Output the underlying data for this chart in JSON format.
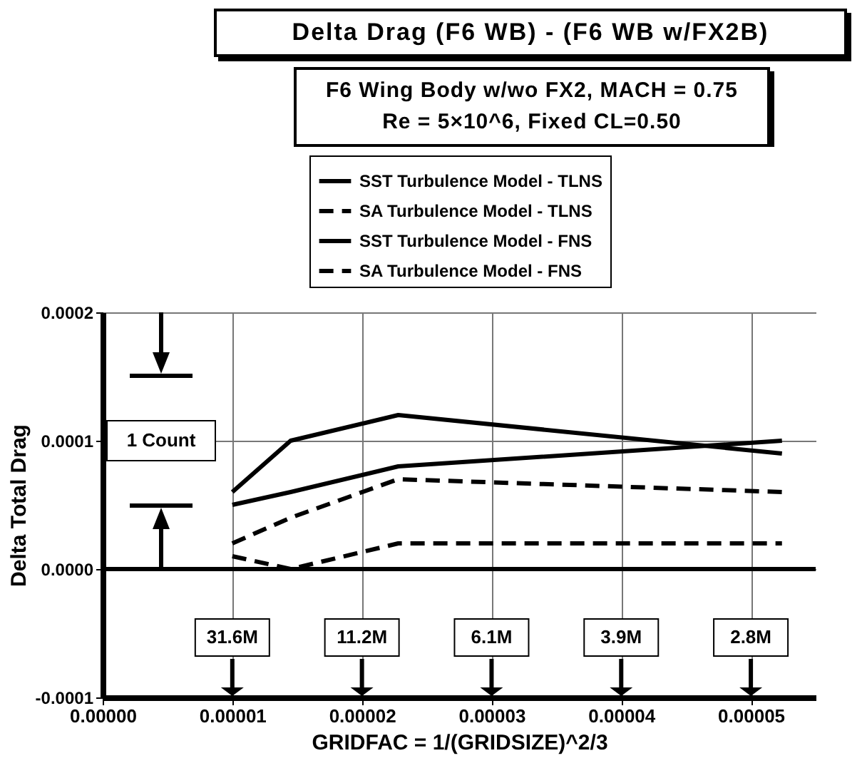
{
  "chart_data": {
    "type": "line",
    "title": "Delta Drag (F6 WB) - (F6 WB w/FX2B)",
    "subtitle": "F6 Wing Body w/wo FX2, MACH = 0.75\nRe = 5×10^6, Fixed CL=0.50",
    "xlabel": "GRIDFAC = 1/(GRIDSIZE)^2/3",
    "ylabel": "Delta Total Drag",
    "x": [
      1e-05,
      1.45e-05,
      2.28e-05,
      5.24e-05
    ],
    "series": [
      {
        "name": "SST Turbulence Model - TLNS",
        "color": "#000000",
        "line_style": "solid",
        "values": [
          6e-05,
          0.0001,
          0.00012,
          9e-05
        ]
      },
      {
        "name": "SA  Turbulence Model - TLNS",
        "color": "#000000",
        "line_style": "dashed",
        "values": [
          2e-05,
          4e-05,
          7e-05,
          6e-05
        ]
      },
      {
        "name": "SST Turbulence Model - FNS",
        "color": "#000000",
        "line_style": "solid",
        "values": [
          5e-05,
          6e-05,
          8e-05,
          0.0001
        ]
      },
      {
        "name": "SA  Turbulence Model - FNS",
        "color": "#000000",
        "line_style": "dashed",
        "values": [
          1e-05,
          0,
          2e-05,
          2e-05
        ]
      }
    ],
    "xlim": [
      0,
      5.5e-05
    ],
    "ylim": [
      -0.0001,
      0.0002
    ],
    "xticks": [
      {
        "value": 0,
        "label": "0.00000"
      },
      {
        "value": 1e-05,
        "label": "0.00001"
      },
      {
        "value": 2e-05,
        "label": "0.00002"
      },
      {
        "value": 3e-05,
        "label": "0.00003"
      },
      {
        "value": 4e-05,
        "label": "0.00004"
      },
      {
        "value": 5e-05,
        "label": "0.00005"
      }
    ],
    "yticks": [
      {
        "value": -0.0001,
        "label": "-0.0001"
      },
      {
        "value": 0,
        "label": "0.0000"
      },
      {
        "value": 0.0001,
        "label": "0.0001"
      },
      {
        "value": 0.0002,
        "label": "0.0002"
      }
    ],
    "ref_lines": [
      {
        "axis": "y",
        "value": 0,
        "color": "#000000"
      }
    ],
    "annotations": [
      "1 Count",
      "31.6M",
      "11.2M",
      "6.1M",
      "3.9M",
      "2.8M"
    ],
    "grid": true,
    "legend": "top",
    "marker": "none"
  }
}
